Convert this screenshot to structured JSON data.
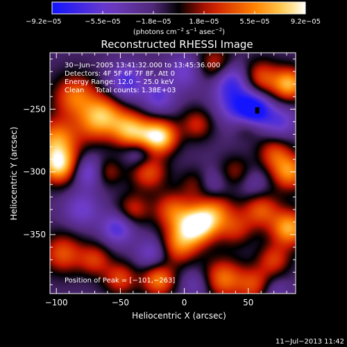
{
  "chart_data": {
    "type": "heatmap",
    "title": "Reconstructed RHESSI Image",
    "xlabel": "Heliocentric X (arcsec)",
    "ylabel": "Heliocentric Y (arcsec)",
    "xlim": [
      -105,
      87
    ],
    "ylim": [
      -397,
      -205
    ],
    "x_ticks": [
      -100,
      -50,
      0,
      50
    ],
    "x_tick_labels": [
      "−100",
      "−50",
      "0",
      "50"
    ],
    "y_ticks": [
      -250,
      -300,
      -350
    ],
    "y_tick_labels": [
      "−250",
      "−300",
      "−350"
    ],
    "colorbar": {
      "range": [
        -9.2e-05,
        9.2e-05
      ],
      "tick_labels": [
        "−9.2e−05",
        "−5.5e−05",
        "−1.8e−05",
        "1.8e−05",
        "5.5e−05",
        "9.2e−05"
      ],
      "unit_parts": [
        "(photons cm",
        "−2",
        " s",
        "−1",
        " asec",
        "−2",
        ")"
      ]
    },
    "annotations": [
      "30−Jun−2005 13:41:32.000 to 13:45:36.000",
      "Detectors: 4F 5F 6F 7F 8F, Att 0",
      "Energy Range: 12.0 − 25.0 keV",
      "Clean     Total counts: 1.38E+03"
    ],
    "peak_label": "Position of Peak = [−101,−263]",
    "peak_position": [
      -101,
      -263
    ],
    "min_marker": [
      57,
      -251
    ],
    "timestamp": "11−Jul−2013 11:42",
    "sources": [
      {
        "x": -98,
        "y": -295,
        "v": 1.0,
        "r": 10
      },
      {
        "x": -100,
        "y": -275,
        "v": 0.8,
        "r": 12
      },
      {
        "x": -85,
        "y": -240,
        "v": 0.7,
        "r": 12
      },
      {
        "x": -70,
        "y": -262,
        "v": 0.55,
        "r": 11
      },
      {
        "x": -62,
        "y": -252,
        "v": 0.55,
        "r": 10
      },
      {
        "x": -45,
        "y": -265,
        "v": 0.75,
        "r": 10
      },
      {
        "x": -32,
        "y": -272,
        "v": 0.6,
        "r": 10
      },
      {
        "x": -18,
        "y": -272,
        "v": 0.95,
        "r": 9
      },
      {
        "x": -28,
        "y": -300,
        "v": 0.6,
        "r": 10
      },
      {
        "x": -10,
        "y": -330,
        "v": 0.55,
        "r": 10
      },
      {
        "x": -40,
        "y": -330,
        "v": 0.45,
        "r": 9
      },
      {
        "x": -60,
        "y": -300,
        "v": 0.4,
        "r": 8
      },
      {
        "x": -95,
        "y": -365,
        "v": 0.6,
        "r": 11
      },
      {
        "x": -70,
        "y": -370,
        "v": 0.5,
        "r": 9
      },
      {
        "x": -20,
        "y": -386,
        "v": 0.75,
        "r": 9
      },
      {
        "x": -5,
        "y": -360,
        "v": 0.55,
        "r": 10
      },
      {
        "x": 5,
        "y": -345,
        "v": 0.85,
        "r": 11
      },
      {
        "x": 15,
        "y": -340,
        "v": 0.65,
        "r": 10
      },
      {
        "x": 25,
        "y": -330,
        "v": 0.5,
        "r": 10
      },
      {
        "x": 40,
        "y": -345,
        "v": 0.45,
        "r": 10
      },
      {
        "x": 30,
        "y": -385,
        "v": 0.7,
        "r": 11
      },
      {
        "x": 55,
        "y": -390,
        "v": 0.55,
        "r": 10
      },
      {
        "x": 60,
        "y": -330,
        "v": 0.6,
        "r": 10
      },
      {
        "x": 82,
        "y": -345,
        "v": 0.9,
        "r": 10
      },
      {
        "x": 82,
        "y": -300,
        "v": 0.8,
        "r": 10
      },
      {
        "x": 70,
        "y": -285,
        "v": 0.5,
        "r": 9
      },
      {
        "x": 82,
        "y": -230,
        "v": 0.9,
        "r": 9
      },
      {
        "x": 60,
        "y": -225,
        "v": 0.6,
        "r": 10
      },
      {
        "x": 25,
        "y": -215,
        "v": 0.55,
        "r": 10
      },
      {
        "x": 10,
        "y": -262,
        "v": 0.45,
        "r": 9
      },
      {
        "x": 10,
        "y": -310,
        "v": 0.4,
        "r": 9
      },
      {
        "x": 50,
        "y": -262,
        "v": 0.35,
        "r": 8
      },
      {
        "x": -50,
        "y": -385,
        "v": 0.55,
        "r": 9
      },
      {
        "x": 70,
        "y": -370,
        "v": 0.5,
        "r": 9
      },
      {
        "x": 40,
        "y": -300,
        "v": 0.35,
        "r": 9
      },
      {
        "x": 42,
        "y": -245,
        "v": -0.6,
        "r": 12
      },
      {
        "x": 55,
        "y": -252,
        "v": -0.85,
        "r": 9
      },
      {
        "x": 35,
        "y": -225,
        "v": -0.55,
        "r": 10
      },
      {
        "x": -52,
        "y": -345,
        "v": -0.55,
        "r": 9
      },
      {
        "x": -80,
        "y": -330,
        "v": -0.4,
        "r": 10
      },
      {
        "x": -45,
        "y": -228,
        "v": -0.55,
        "r": 10
      },
      {
        "x": -20,
        "y": -240,
        "v": -0.45,
        "r": 9
      },
      {
        "x": -35,
        "y": -285,
        "v": -0.45,
        "r": 8
      },
      {
        "x": -75,
        "y": -300,
        "v": -0.5,
        "r": 9
      },
      {
        "x": 20,
        "y": -310,
        "v": -0.35,
        "r": 9
      },
      {
        "x": 75,
        "y": -260,
        "v": -0.45,
        "r": 9
      },
      {
        "x": 0,
        "y": -220,
        "v": -0.4,
        "r": 10
      },
      {
        "x": -25,
        "y": -365,
        "v": -0.4,
        "r": 9
      },
      {
        "x": 10,
        "y": -390,
        "v": -0.3,
        "r": 9
      },
      {
        "x": 70,
        "y": -395,
        "v": -0.3,
        "r": 8
      },
      {
        "x": 55,
        "y": -310,
        "v": -0.25,
        "r": 9
      }
    ]
  }
}
